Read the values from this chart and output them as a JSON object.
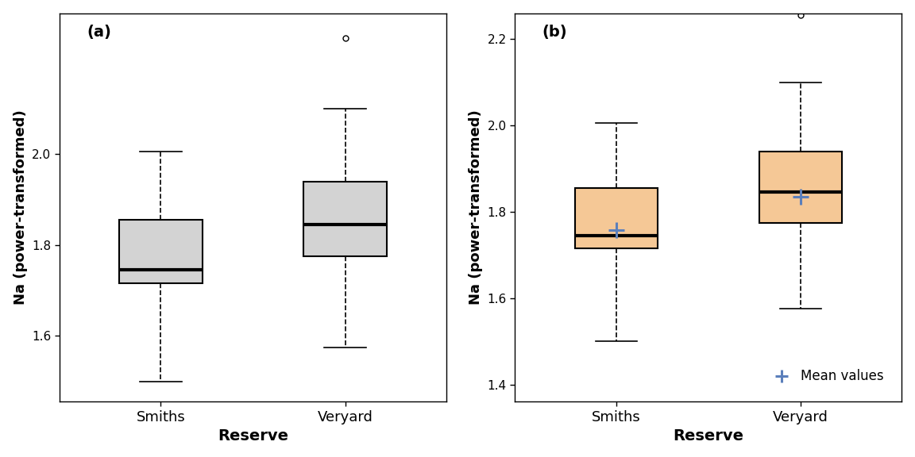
{
  "smiths": {
    "med": 1.745,
    "q1": 1.715,
    "q3": 1.855,
    "whisker_low": 1.5,
    "whisker_high": 2.005,
    "outliers": [],
    "mean": 1.757,
    "fliers_high": []
  },
  "veryard": {
    "med": 1.845,
    "q1": 1.775,
    "q3": 1.94,
    "whisker_low": 1.575,
    "whisker_high": 2.1,
    "outliers": [
      2.255
    ],
    "mean": 1.834,
    "fliers_high": [
      2.255
    ]
  },
  "categories": [
    "Smiths",
    "Veryard"
  ],
  "xlabel": "Reserve",
  "ylabel": "Na (power-transformed)",
  "label_a": "(a)",
  "label_b": "(b)",
  "box_color_a": "#d3d3d3",
  "box_color_b": "#f5c896",
  "median_color": "black",
  "mean_color": "#5b7fbb",
  "ylim_a": [
    1.455,
    2.31
  ],
  "ylim_b": [
    1.36,
    2.26
  ],
  "yticks_a": [
    1.6,
    1.8,
    2.0
  ],
  "yticks_b": [
    1.4,
    1.6,
    1.8,
    2.0,
    2.2
  ],
  "box_width": 0.45,
  "linewidth": 1.5,
  "median_lw": 3.0,
  "whisker_lw": 1.2,
  "cap_lw": 1.2
}
